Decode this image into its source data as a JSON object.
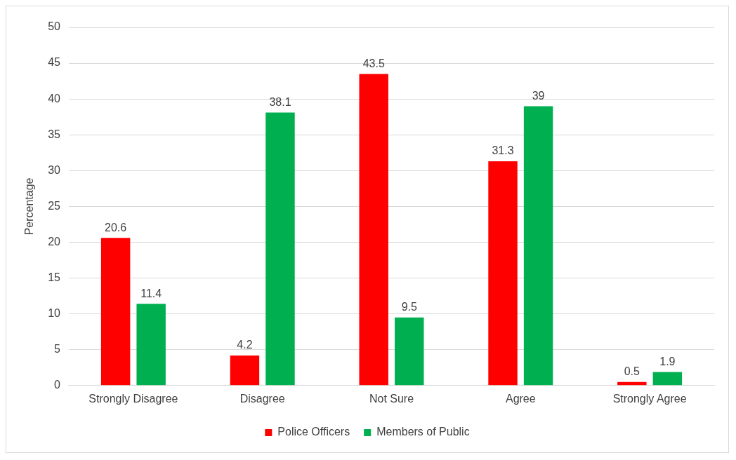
{
  "chart_data": {
    "type": "bar",
    "ylabel": "Percentage",
    "categories": [
      "Strongly Disagree",
      "Disagree",
      "Not Sure",
      "Agree",
      "Strongly Agree"
    ],
    "series": [
      {
        "name": "Police Officers",
        "color": "#ff0000",
        "values": [
          20.6,
          4.2,
          43.5,
          31.3,
          0.5
        ]
      },
      {
        "name": "Members of Public",
        "color": "#00b050",
        "values": [
          11.4,
          38.1,
          9.5,
          39,
          1.9
        ]
      }
    ],
    "ylim": [
      0,
      50
    ],
    "yticks": [
      0,
      5,
      10,
      15,
      20,
      25,
      30,
      35,
      40,
      45,
      50
    ],
    "grid": "y",
    "legend": "bottom",
    "data_labels": true
  }
}
